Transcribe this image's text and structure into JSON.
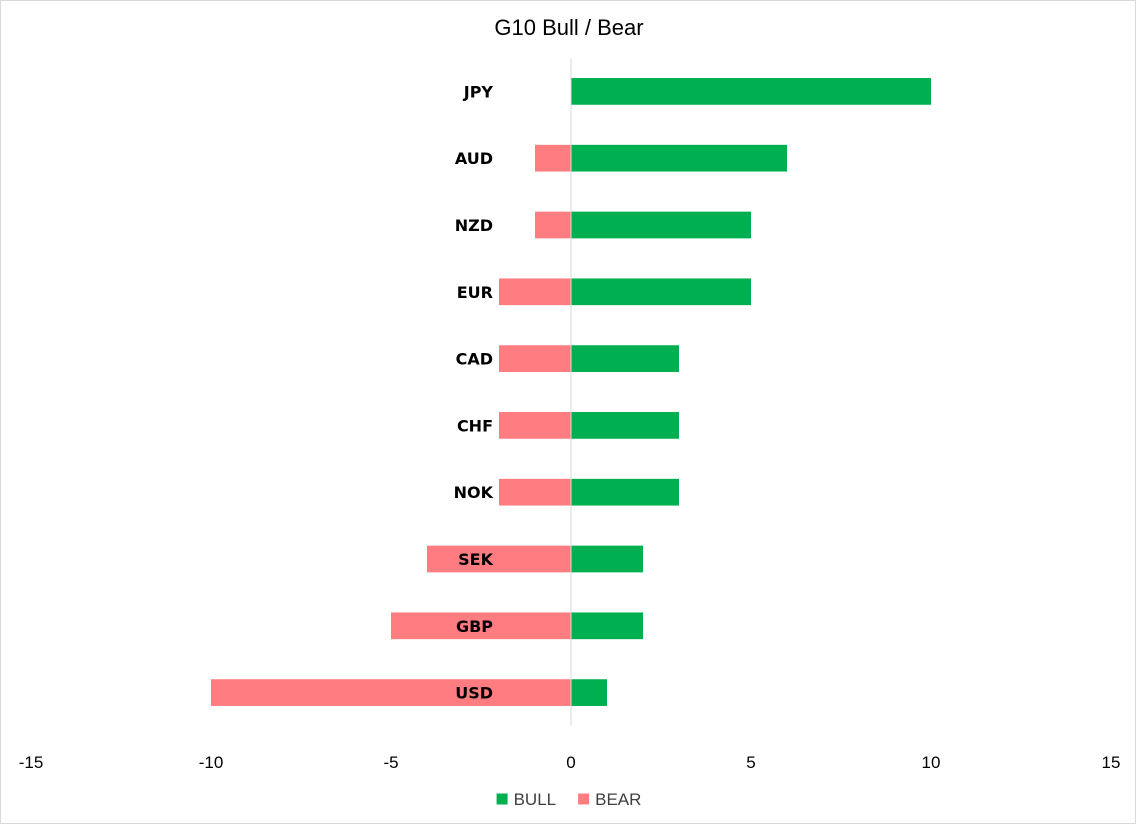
{
  "chart_data": {
    "type": "bar",
    "orientation": "horizontal",
    "stacked": true,
    "title": "G10 Bull / Bear",
    "xlabel": "",
    "ylabel": "",
    "categories": [
      "JPY",
      "AUD",
      "NZD",
      "EUR",
      "CAD",
      "CHF",
      "NOK",
      "SEK",
      "GBP",
      "USD"
    ],
    "series": [
      {
        "name": "BULL",
        "color": "#00b050",
        "values": [
          10,
          6,
          5,
          5,
          3,
          3,
          3,
          2,
          2,
          1
        ]
      },
      {
        "name": "BEAR",
        "color": "#ff7c80",
        "values": [
          0,
          -1,
          -1,
          -2,
          -2,
          -2,
          -2,
          -4,
          -5,
          -10
        ]
      }
    ],
    "xlim": [
      -15,
      15
    ],
    "xticks": [
      -15,
      -10,
      -5,
      0,
      5,
      10,
      15
    ],
    "grid": false,
    "legend": "bottom"
  }
}
